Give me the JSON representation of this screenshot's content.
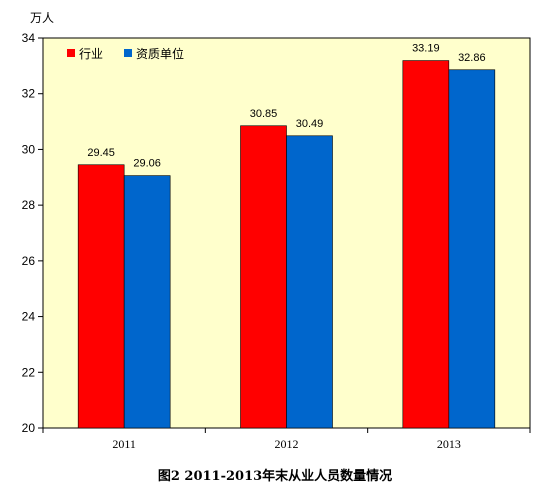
{
  "chart_data": {
    "type": "bar",
    "title": "图2 2011-2013年末从业人员数量情况",
    "ylabel": "万人",
    "xlabel": "",
    "categories": [
      "2011",
      "2012",
      "2013"
    ],
    "series": [
      {
        "name": "行业",
        "values": [
          29.45,
          30.85,
          33.19
        ],
        "color": "#ff0000"
      },
      {
        "name": "资质单位",
        "values": [
          29.06,
          30.49,
          32.86
        ],
        "color": "#0066cc"
      }
    ],
    "ylim": [
      20,
      34
    ],
    "yticks": [
      20,
      22,
      24,
      26,
      28,
      30,
      32,
      34
    ],
    "value_labels": [
      [
        "29.45",
        "30.85",
        "33.19"
      ],
      [
        "29.06",
        "30.49",
        "32.86"
      ]
    ],
    "grid": false,
    "legend_position": "top-left",
    "plot_background": "#ffffcc"
  }
}
